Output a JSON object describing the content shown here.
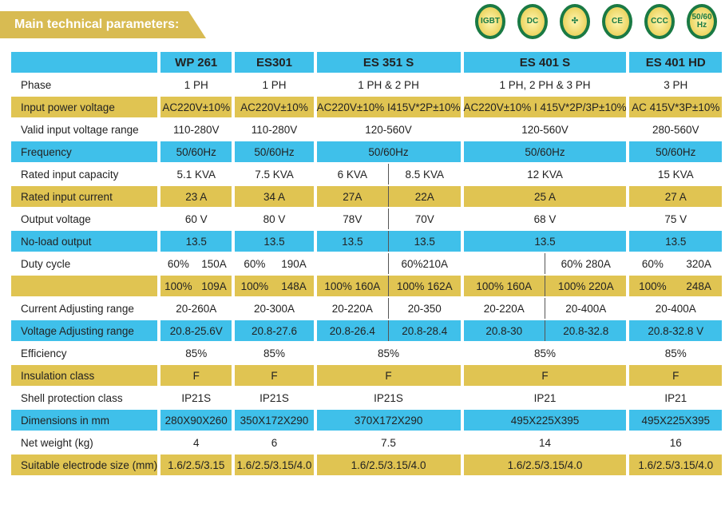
{
  "title": "Main technical parameters:",
  "badges": [
    "IGBT",
    "DC",
    "fan",
    "CE",
    "CCC",
    "50/60 Hz"
  ],
  "colors": {
    "cyan": "#3fc0ea",
    "gold": "#e0c452"
  },
  "headers": [
    "",
    "WP 261",
    "ES301",
    "ES 351 S",
    "ES 401 S",
    "ES 401 HD"
  ],
  "rows": [
    {
      "style": "white",
      "label": "Phase",
      "cells": [
        "1 PH",
        "1 PH",
        "1 PH & 2 PH",
        "1 PH, 2 PH & 3 PH",
        "3 PH"
      ]
    },
    {
      "style": "gold",
      "label": "Input power voltage",
      "cells": [
        "AC220V±10%",
        "AC220V±10%",
        "AC220V±10%  I415V*2P±10%",
        "AC220V±10% I 415V*2P/3P±10%",
        "AC 415V*3P±10%"
      ]
    },
    {
      "style": "white",
      "label": "Valid input voltage range",
      "cells": [
        "110-280V",
        "110-280V",
        "120-560V",
        "120-560V",
        "280-560V"
      ]
    },
    {
      "style": "cyan",
      "label": "Frequency",
      "cells": [
        "50/60Hz",
        "50/60Hz",
        "50/60Hz",
        "50/60Hz",
        "50/60Hz"
      ]
    },
    {
      "style": "white",
      "label": "Rated input capacity",
      "cells": [
        "5.1 KVA",
        "7.5 KVA",
        [
          "6 KVA",
          "8.5 KVA"
        ],
        "12 KVA",
        "15 KVA"
      ]
    },
    {
      "style": "gold",
      "label": "Rated input current",
      "cells": [
        "23 A",
        "34 A",
        [
          "27A",
          "22A"
        ],
        "25 A",
        "27 A"
      ]
    },
    {
      "style": "white",
      "label": "Output voltage",
      "cells": [
        "60 V",
        "80 V",
        [
          "78V",
          "70V"
        ],
        "68 V",
        "75 V"
      ]
    },
    {
      "style": "cyan",
      "label": "No-load output",
      "cells": [
        "13.5",
        "13.5",
        [
          "13.5",
          "13.5"
        ],
        "13.5",
        "13.5"
      ]
    },
    {
      "style": "white",
      "label": "Duty cycle",
      "cells": [
        [
          "60%",
          "150A"
        ],
        [
          "60%",
          "190A"
        ],
        [
          "",
          "60%210A"
        ],
        [
          "",
          "60% 280A"
        ],
        [
          "60%",
          "320A"
        ]
      ]
    },
    {
      "style": "gold",
      "label": "",
      "cells": [
        [
          "100%",
          "109A"
        ],
        [
          "100%",
          "148A"
        ],
        [
          "100% 160A",
          "100% 162A"
        ],
        [
          "100% 160A",
          "100% 220A"
        ],
        [
          "100%",
          "248A"
        ]
      ]
    },
    {
      "style": "white",
      "label": "Current Adjusting range",
      "cells": [
        "20-260A",
        "20-300A",
        [
          "20-220A",
          "20-350"
        ],
        [
          "20-220A",
          "20-400A"
        ],
        "20-400A"
      ]
    },
    {
      "style": "cyan",
      "label": "Voltage Adjusting range",
      "cells": [
        "20.8-25.6V",
        "20.8-27.6",
        [
          "20.8-26.4",
          "20.8-28.4"
        ],
        [
          "20.8-30",
          "20.8-32.8"
        ],
        "20.8-32.8 V"
      ]
    },
    {
      "style": "white",
      "label": "Efficiency",
      "cells": [
        "85%",
        "85%",
        "85%",
        "85%",
        "85%"
      ]
    },
    {
      "style": "gold",
      "label": "Insulation class",
      "cells": [
        "F",
        "F",
        "F",
        "F",
        "F"
      ]
    },
    {
      "style": "white",
      "label": "Shell protection class",
      "cells": [
        "IP21S",
        "IP21S",
        "IP21S",
        "IP21",
        "IP21"
      ]
    },
    {
      "style": "cyan",
      "label": "Dimensions in mm",
      "cells": [
        "280X90X260",
        "350X172X290",
        "370X172X290",
        "495X225X395",
        "495X225X395"
      ]
    },
    {
      "style": "white",
      "label": "Net weight (kg)",
      "cells": [
        "4",
        "6",
        "7.5",
        "14",
        "16"
      ]
    },
    {
      "style": "gold",
      "label": "Suitable electrode size (mm)",
      "cells": [
        "1.6/2.5/3.15",
        "1.6/2.5/3.15/4.0",
        "1.6/2.5/3.15/4.0",
        "1.6/2.5/3.15/4.0",
        "1.6/2.5/3.15/4.0"
      ]
    }
  ]
}
